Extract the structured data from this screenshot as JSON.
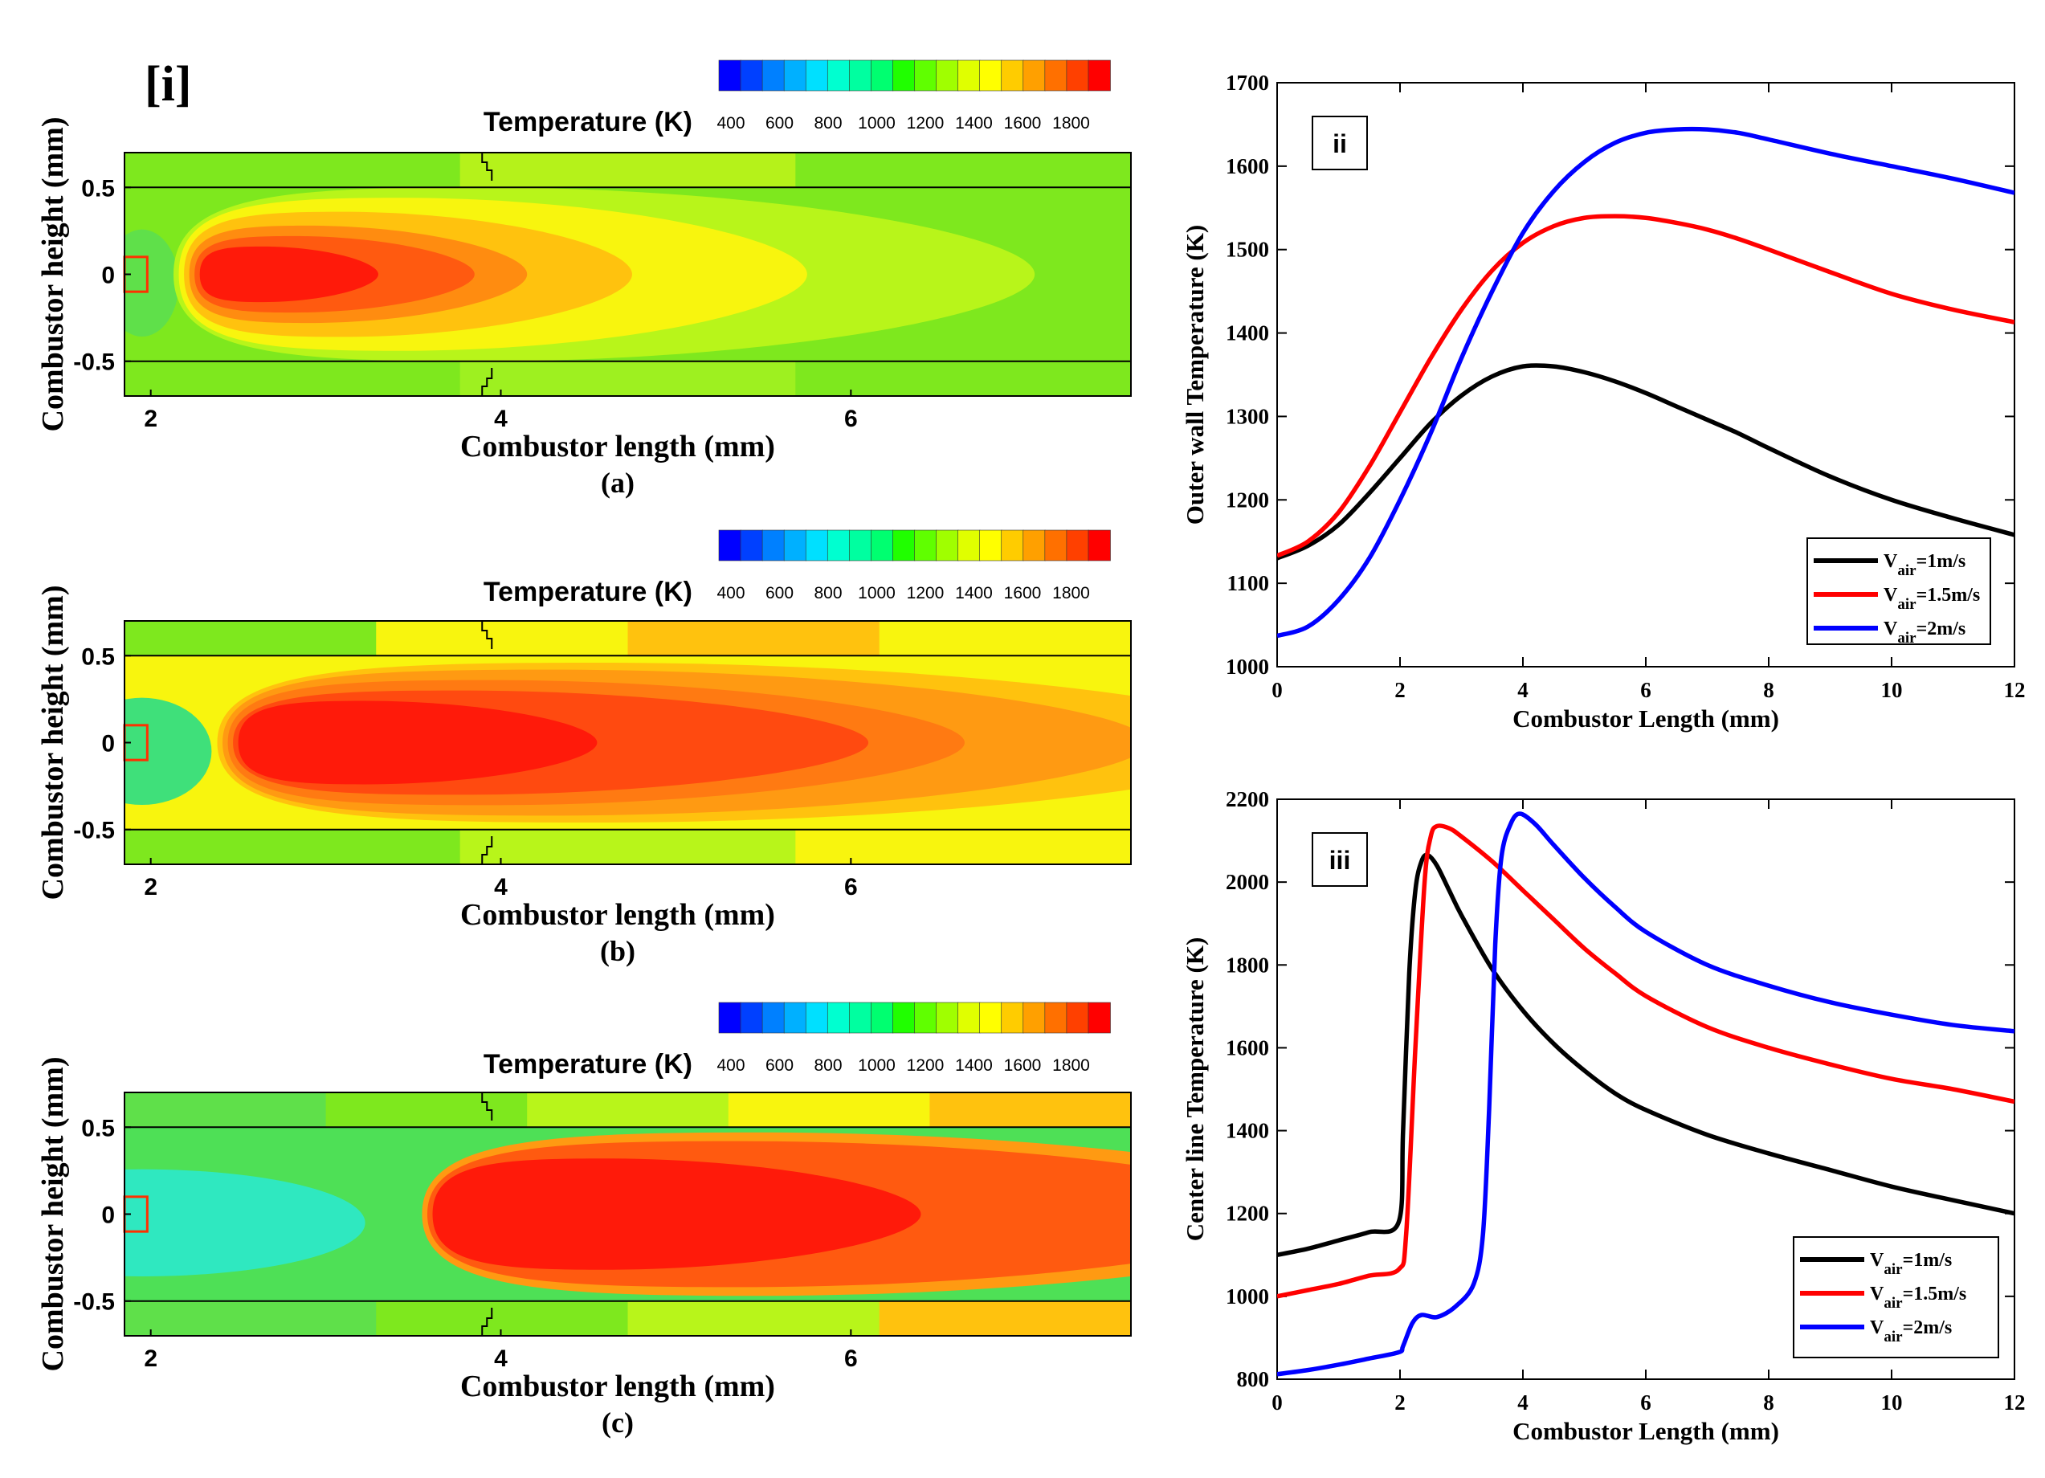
{
  "panel_i": {
    "label": "[i]",
    "colorbar": {
      "title": "Temperature (K)",
      "ticks": [
        "400",
        "600",
        "800",
        "1000",
        "1200",
        "1400",
        "1600",
        "1800"
      ],
      "colors": [
        "#0000ff",
        "#0040ff",
        "#0080ff",
        "#00b0ff",
        "#00e0ff",
        "#00ffd0",
        "#00ffa0",
        "#00ff70",
        "#20ff00",
        "#60ff00",
        "#a0ff00",
        "#e0ff00",
        "#ffff00",
        "#ffcc00",
        "#ffa000",
        "#ff7000",
        "#ff4000",
        "#ff0000"
      ]
    },
    "subplots": [
      {
        "caption": "(a)",
        "xlabel": "Combustor length (mm)",
        "ylabel": "Combustor height (mm)",
        "xticks": [
          "2",
          "4",
          "6"
        ],
        "yticks": [
          "0.5",
          "0",
          "-0.5"
        ],
        "xlim": [
          1.85,
          7.6
        ],
        "ylim": [
          -0.7,
          0.7
        ],
        "colors": {
          "bg": "#7ee81e",
          "wall_top": [
            "#7ee81e",
            "#b5f21a",
            "#7ee81e"
          ],
          "wall_bottom": [
            "#7ee81e",
            "#9ef020",
            "#7ee81e"
          ],
          "cold_core": "#5fe04a",
          "layers": [
            "#b8f51a",
            "#f8f50e",
            "#ffc20e",
            "#ff8c10",
            "#ff5a10",
            "#ff1a0a"
          ]
        },
        "flame_front_x": 2.13,
        "tip_x": [
          7.05,
          5.75,
          4.75,
          4.15,
          3.85,
          3.3
        ],
        "half_height": [
          0.5,
          0.44,
          0.36,
          0.28,
          0.22,
          0.16
        ]
      },
      {
        "caption": "(b)",
        "xlabel": "Combustor length (mm)",
        "ylabel": "Combustor height (mm)",
        "xticks": [
          "2",
          "4",
          "6"
        ],
        "yticks": [
          "0.5",
          "0",
          "-0.5"
        ],
        "xlim": [
          1.85,
          7.6
        ],
        "ylim": [
          -0.7,
          0.7
        ],
        "colors": {
          "bg": "#f8f50e",
          "wall_top": [
            "#7ee81e",
            "#f8f50e",
            "#ffc20e",
            "#f8f50e"
          ],
          "wall_bottom": [
            "#7ee81e",
            "#b8f51a",
            "#f8f50e"
          ],
          "cold_core": "#3fe07a",
          "layers": [
            "#ffc20e",
            "#ff9a12",
            "#ff7a12",
            "#ff4a10",
            "#ff1a0a"
          ]
        },
        "flame_front_x": 2.38,
        "tip_x": [
          8.5,
          7.7,
          6.65,
          6.1,
          4.55
        ],
        "half_height": [
          0.46,
          0.42,
          0.36,
          0.3,
          0.24
        ]
      },
      {
        "caption": "(c)",
        "xlabel": "Combustor length (mm)",
        "ylabel": "Combustor height (mm)",
        "xticks": [
          "2",
          "4",
          "6"
        ],
        "yticks": [
          "0.5",
          "0",
          "-0.5"
        ],
        "xlim": [
          1.85,
          7.6
        ],
        "ylim": [
          -0.7,
          0.7
        ],
        "colors": {
          "bg": "#4ee056",
          "wall_top": [
            "#5fe04a",
            "#7ee81e",
            "#b8f51a",
            "#f8f50e",
            "#ffc20e"
          ],
          "wall_bottom": [
            "#5fe04a",
            "#7ee81e",
            "#b8f51a",
            "#ffc20e"
          ],
          "cold_core": "#2fe8c0",
          "layers": [
            "#ff9a12",
            "#ff5a10",
            "#ff1a0a"
          ]
        },
        "flame_front_x": 3.55,
        "tip_x": [
          9.0,
          8.6,
          6.4
        ],
        "half_height": [
          0.47,
          0.42,
          0.32
        ]
      }
    ]
  },
  "panel_ii": {
    "label": "ii",
    "xlabel": "Combustor Length (mm)",
    "ylabel": "Outer wall Temperature (K)",
    "xticks": [
      "0",
      "2",
      "4",
      "6",
      "8",
      "10",
      "12"
    ],
    "yticks": [
      "1000",
      "1100",
      "1200",
      "1300",
      "1400",
      "1500",
      "1600",
      "1700"
    ],
    "xlim": [
      0,
      12
    ],
    "ylim": [
      1000,
      1700
    ],
    "legend": [
      {
        "text": "V",
        "sub": "air",
        "suffix": "=1m/s",
        "color": "#000000"
      },
      {
        "text": "V",
        "sub": "air",
        "suffix": "=1.5m/s",
        "color": "#ff0000"
      },
      {
        "text": "V",
        "sub": "air",
        "suffix": "=2m/s",
        "color": "#0000ff"
      }
    ]
  },
  "panel_iii": {
    "label": "iii",
    "xlabel": "Combustor Length (mm)",
    "ylabel": "Center line Temperature (K)",
    "xticks": [
      "0",
      "2",
      "4",
      "6",
      "8",
      "10",
      "12"
    ],
    "yticks": [
      "800",
      "1000",
      "1200",
      "1400",
      "1600",
      "1800",
      "2000",
      "2200"
    ],
    "xlim": [
      0,
      12
    ],
    "ylim": [
      800,
      2200
    ],
    "legend": [
      {
        "text": "V",
        "sub": "air",
        "suffix": "=1m/s",
        "color": "#000000"
      },
      {
        "text": "V",
        "sub": "air",
        "suffix": "=1.5m/s",
        "color": "#ff0000"
      },
      {
        "text": "V",
        "sub": "air",
        "suffix": "=2m/s",
        "color": "#0000ff"
      }
    ]
  },
  "chart_data": [
    {
      "type": "line",
      "title": "ii",
      "xlabel": "Combustor Length (mm)",
      "ylabel": "Outer wall Temperature (K)",
      "xlim": [
        0,
        12
      ],
      "ylim": [
        1000,
        1700
      ],
      "grid": false,
      "legend_position": "bottom-right",
      "x": [
        0,
        0.5,
        1,
        1.5,
        2,
        2.5,
        3,
        3.5,
        4,
        4.5,
        5,
        5.5,
        6,
        6.5,
        7,
        7.5,
        8,
        9,
        10,
        11,
        12
      ],
      "series": [
        {
          "name": "Vair=1m/s",
          "color": "#000000",
          "values": [
            1130,
            1145,
            1170,
            1208,
            1250,
            1292,
            1325,
            1348,
            1360,
            1360,
            1353,
            1342,
            1328,
            1312,
            1296,
            1280,
            1262,
            1228,
            1200,
            1178,
            1158
          ]
        },
        {
          "name": "Vair=1.5m/s",
          "color": "#ff0000",
          "values": [
            1133,
            1150,
            1185,
            1240,
            1305,
            1370,
            1428,
            1475,
            1508,
            1528,
            1538,
            1540,
            1538,
            1532,
            1524,
            1513,
            1500,
            1473,
            1447,
            1428,
            1413
          ]
        },
        {
          "name": "Vair=2m/s",
          "color": "#0000ff",
          "values": [
            1037,
            1048,
            1080,
            1130,
            1200,
            1280,
            1370,
            1450,
            1520,
            1570,
            1605,
            1628,
            1640,
            1644,
            1644,
            1640,
            1632,
            1615,
            1600,
            1585,
            1568
          ]
        }
      ]
    },
    {
      "type": "line",
      "title": "iii",
      "xlabel": "Combustor Length (mm)",
      "ylabel": "Center line Temperature (K)",
      "xlim": [
        0,
        12
      ],
      "ylim": [
        800,
        2200
      ],
      "grid": false,
      "legend_position": "bottom-right",
      "series": [
        {
          "name": "Vair=1m/s",
          "color": "#000000",
          "x": [
            0,
            0.5,
            1,
            1.5,
            1.98,
            2.05,
            2.15,
            2.25,
            2.35,
            2.45,
            2.6,
            2.8,
            3,
            3.5,
            4,
            4.5,
            5,
            5.5,
            6,
            7,
            8,
            9,
            10,
            11,
            12
          ],
          "values": [
            1100,
            1115,
            1135,
            1155,
            1180,
            1400,
            1780,
            1980,
            2050,
            2065,
            2040,
            1980,
            1920,
            1790,
            1690,
            1610,
            1545,
            1490,
            1450,
            1390,
            1345,
            1305,
            1265,
            1232,
            1200
          ]
        },
        {
          "name": "Vair=1.5m/s",
          "color": "#ff0000",
          "x": [
            0,
            0.5,
            1,
            1.5,
            1.98,
            2.1,
            2.25,
            2.4,
            2.5,
            2.6,
            2.8,
            3,
            3.5,
            4,
            4.5,
            5,
            5.5,
            6,
            7,
            8,
            9,
            10,
            11,
            12
          ],
          "values": [
            1000,
            1015,
            1030,
            1050,
            1065,
            1150,
            1600,
            2000,
            2110,
            2135,
            2130,
            2110,
            2050,
            1980,
            1910,
            1840,
            1780,
            1725,
            1650,
            1600,
            1560,
            1525,
            1500,
            1470
          ]
        },
        {
          "name": "Vair=2m/s",
          "color": "#0000ff",
          "x": [
            0,
            0.5,
            1,
            1.5,
            1.98,
            2.05,
            2.2,
            2.35,
            2.6,
            2.9,
            3.2,
            3.35,
            3.45,
            3.55,
            3.65,
            3.8,
            3.95,
            4.2,
            4.5,
            5,
            5.5,
            6,
            7,
            8,
            9,
            10,
            11,
            12
          ],
          "values": [
            812,
            822,
            835,
            850,
            865,
            880,
            935,
            955,
            950,
            975,
            1030,
            1150,
            1450,
            1850,
            2060,
            2140,
            2165,
            2140,
            2090,
            2010,
            1940,
            1880,
            1800,
            1750,
            1710,
            1680,
            1655,
            1640
          ]
        }
      ]
    }
  ]
}
